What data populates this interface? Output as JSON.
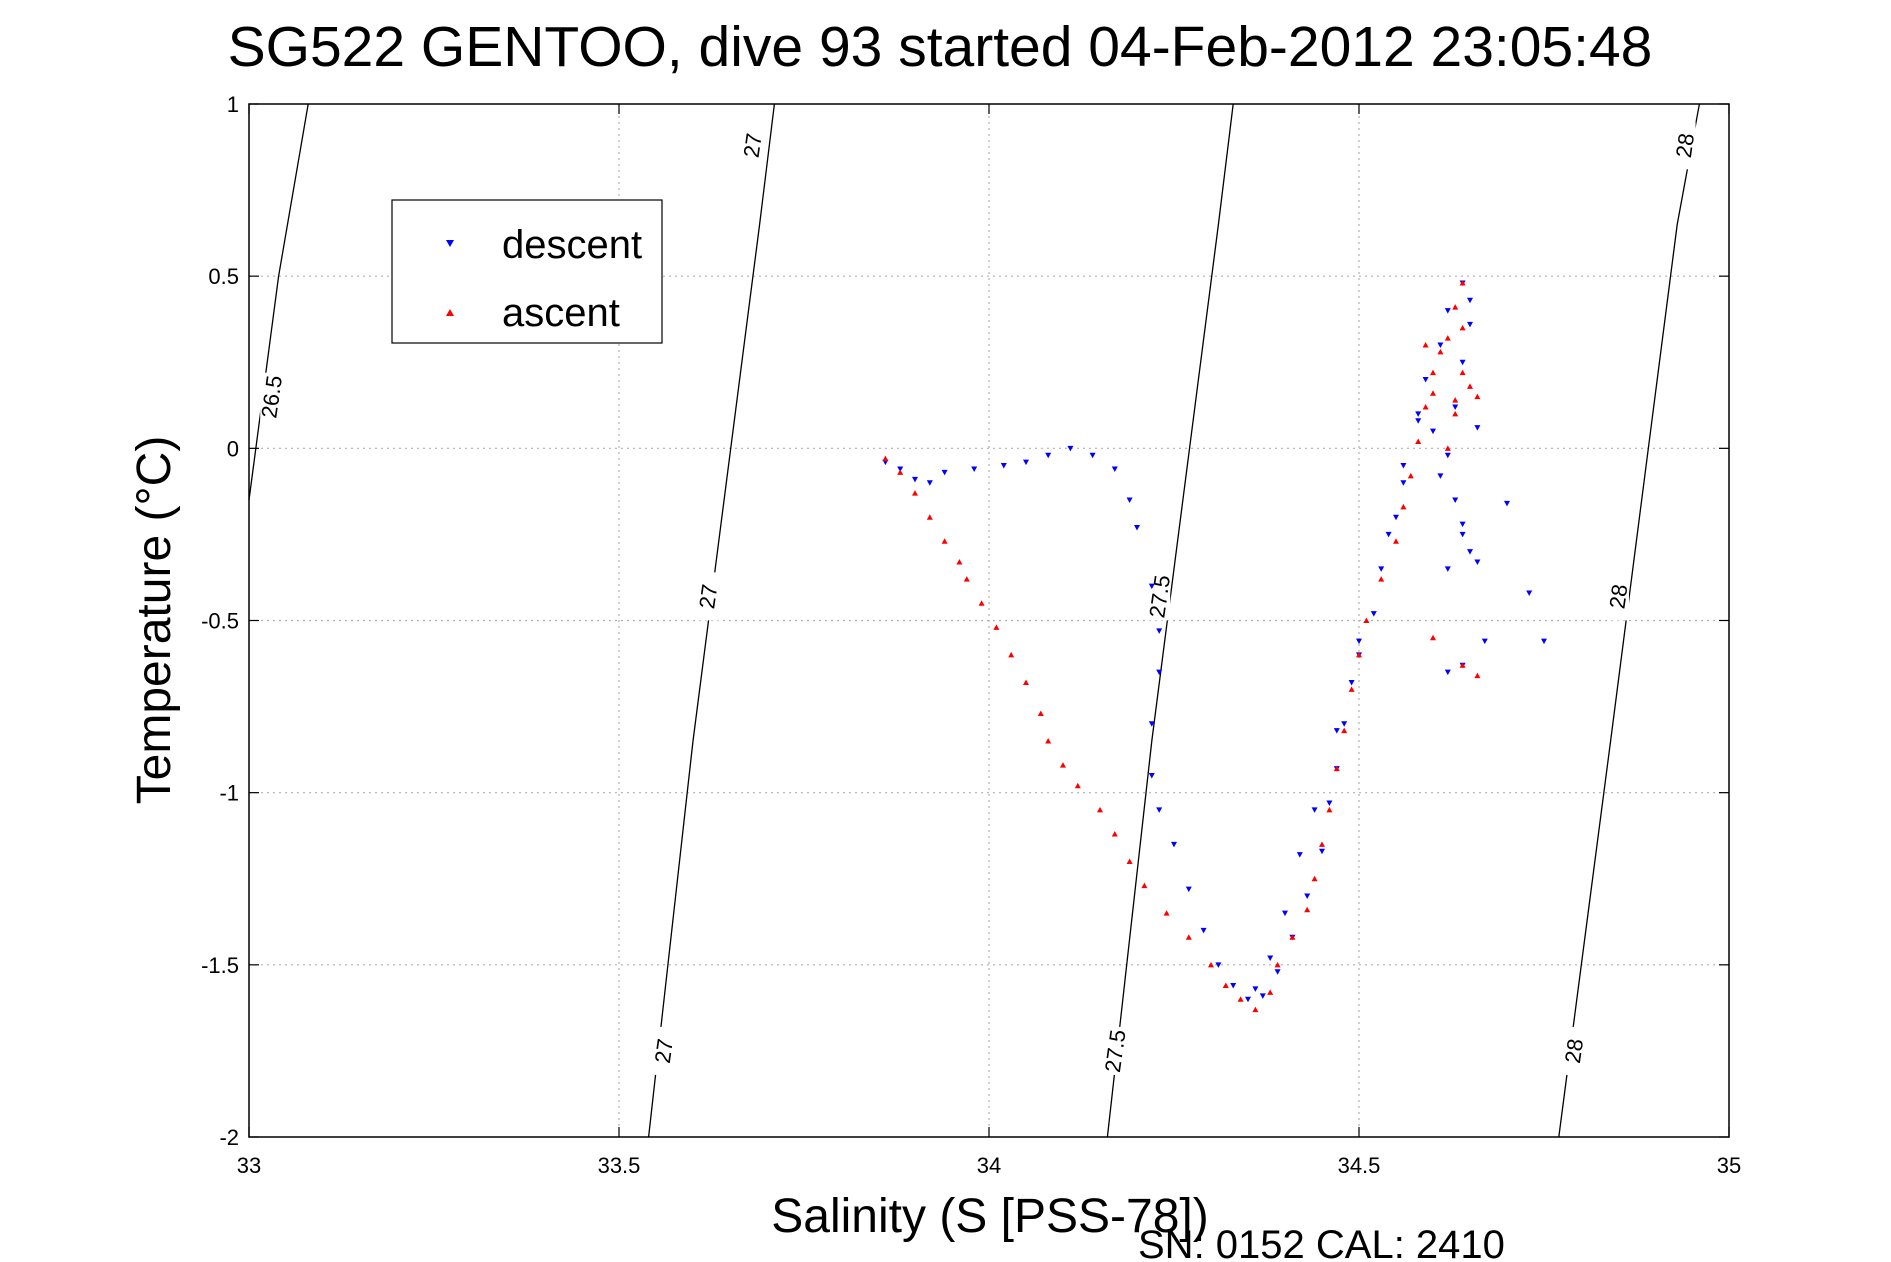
{
  "chart_data": {
    "type": "scatter",
    "title": "SG522 GENTOO, dive 93 started 04-Feb-2012 23:05:48",
    "xlabel": "Salinity (S [PSS-78])",
    "ylabel": "Temperature (°C)",
    "xlim": [
      33,
      35
    ],
    "ylim": [
      -2,
      1
    ],
    "xticks": [
      33,
      33.5,
      34,
      34.5,
      35
    ],
    "yticks": [
      -2,
      -1.5,
      -1,
      -0.5,
      0,
      0.5,
      1
    ],
    "xtick_labels": [
      "33",
      "33.5",
      "34",
      "34.5",
      "35"
    ],
    "ytick_labels": [
      "-2",
      "-1.5",
      "-1",
      "-0.5",
      "0",
      "0.5",
      "1"
    ],
    "grid": true,
    "legend_position": "top-left",
    "footer": "SN: 0152  CAL: 2410",
    "contours": [
      {
        "label": "26.5",
        "points": [
          [
            33.0,
            -0.15
          ],
          [
            33.04,
            0.5
          ],
          [
            33.08,
            1.0
          ]
        ],
        "label_positions": [
          [
            33.03,
            0.15
          ]
        ]
      },
      {
        "label": "27",
        "points": [
          [
            33.54,
            -2.0
          ],
          [
            33.6,
            -0.85
          ],
          [
            33.69,
            0.65
          ],
          [
            33.71,
            1.0
          ]
        ],
        "label_positions": [
          [
            33.68,
            0.88
          ],
          [
            33.62,
            -0.43
          ],
          [
            33.56,
            -1.75
          ]
        ]
      },
      {
        "label": "27.5",
        "points": [
          [
            34.16,
            -2.0
          ],
          [
            34.22,
            -0.85
          ],
          [
            34.31,
            0.65
          ],
          [
            34.33,
            1.0
          ]
        ],
        "label_positions": [
          [
            34.23,
            -0.43
          ],
          [
            34.17,
            -1.75
          ]
        ]
      },
      {
        "label": "28",
        "points": [
          [
            34.77,
            -2.0
          ],
          [
            34.84,
            -0.85
          ],
          [
            34.93,
            0.65
          ],
          [
            34.96,
            1.0
          ]
        ],
        "label_positions": [
          [
            34.94,
            0.88
          ],
          [
            34.85,
            -0.43
          ],
          [
            34.79,
            -1.75
          ]
        ]
      }
    ],
    "series": [
      {
        "name": "descent",
        "color": "#0000ff",
        "marker": "triangle-down",
        "points": [
          [
            33.86,
            -0.04
          ],
          [
            33.88,
            -0.06
          ],
          [
            33.9,
            -0.09
          ],
          [
            33.92,
            -0.1
          ],
          [
            33.94,
            -0.07
          ],
          [
            33.98,
            -0.06
          ],
          [
            34.02,
            -0.05
          ],
          [
            34.05,
            -0.04
          ],
          [
            34.08,
            -0.02
          ],
          [
            34.11,
            0.0
          ],
          [
            34.14,
            -0.02
          ],
          [
            34.17,
            -0.06
          ],
          [
            34.19,
            -0.15
          ],
          [
            34.2,
            -0.23
          ],
          [
            34.22,
            -0.4
          ],
          [
            34.23,
            -0.53
          ],
          [
            34.23,
            -0.65
          ],
          [
            34.22,
            -0.8
          ],
          [
            34.22,
            -0.95
          ],
          [
            34.23,
            -1.05
          ],
          [
            34.25,
            -1.15
          ],
          [
            34.27,
            -1.28
          ],
          [
            34.29,
            -1.4
          ],
          [
            34.31,
            -1.5
          ],
          [
            34.33,
            -1.56
          ],
          [
            34.35,
            -1.6
          ],
          [
            34.37,
            -1.59
          ],
          [
            34.39,
            -1.52
          ],
          [
            34.41,
            -1.42
          ],
          [
            34.43,
            -1.3
          ],
          [
            34.45,
            -1.17
          ],
          [
            34.46,
            -1.03
          ],
          [
            34.47,
            -0.93
          ],
          [
            34.48,
            -0.8
          ],
          [
            34.49,
            -0.68
          ],
          [
            34.5,
            -0.56
          ],
          [
            34.52,
            -0.48
          ],
          [
            34.53,
            -0.35
          ],
          [
            34.55,
            -0.2
          ],
          [
            34.56,
            -0.05
          ],
          [
            34.58,
            0.08
          ],
          [
            34.59,
            0.2
          ],
          [
            34.61,
            0.3
          ],
          [
            34.62,
            0.4
          ],
          [
            34.64,
            0.48
          ],
          [
            34.65,
            0.43
          ],
          [
            34.65,
            0.36
          ],
          [
            34.64,
            0.25
          ],
          [
            34.63,
            0.12
          ],
          [
            34.62,
            -0.02
          ],
          [
            34.63,
            -0.15
          ],
          [
            34.64,
            -0.25
          ],
          [
            34.62,
            -0.35
          ],
          [
            34.65,
            -0.3
          ],
          [
            34.66,
            -0.33
          ],
          [
            34.64,
            -0.22
          ],
          [
            34.61,
            -0.08
          ],
          [
            34.6,
            0.05
          ],
          [
            34.66,
            0.06
          ],
          [
            34.7,
            -0.16
          ],
          [
            34.73,
            -0.42
          ],
          [
            34.75,
            -0.56
          ],
          [
            34.67,
            -0.56
          ],
          [
            34.64,
            -0.63
          ],
          [
            34.62,
            -0.65
          ],
          [
            34.58,
            0.1
          ],
          [
            34.56,
            -0.1
          ],
          [
            34.54,
            -0.25
          ],
          [
            34.5,
            -0.6
          ],
          [
            34.47,
            -0.82
          ],
          [
            34.44,
            -1.05
          ],
          [
            34.42,
            -1.18
          ],
          [
            34.4,
            -1.35
          ],
          [
            34.38,
            -1.48
          ],
          [
            34.36,
            -1.57
          ]
        ]
      },
      {
        "name": "ascent",
        "color": "#ff0000",
        "marker": "triangle-up",
        "points": [
          [
            33.86,
            -0.03
          ],
          [
            33.88,
            -0.07
          ],
          [
            33.9,
            -0.13
          ],
          [
            33.92,
            -0.2
          ],
          [
            33.94,
            -0.27
          ],
          [
            33.96,
            -0.33
          ],
          [
            33.97,
            -0.38
          ],
          [
            33.99,
            -0.45
          ],
          [
            34.01,
            -0.52
          ],
          [
            34.03,
            -0.6
          ],
          [
            34.05,
            -0.68
          ],
          [
            34.07,
            -0.77
          ],
          [
            34.08,
            -0.85
          ],
          [
            34.1,
            -0.92
          ],
          [
            34.12,
            -0.98
          ],
          [
            34.15,
            -1.05
          ],
          [
            34.17,
            -1.12
          ],
          [
            34.19,
            -1.2
          ],
          [
            34.21,
            -1.27
          ],
          [
            34.24,
            -1.35
          ],
          [
            34.27,
            -1.42
          ],
          [
            34.3,
            -1.5
          ],
          [
            34.32,
            -1.56
          ],
          [
            34.34,
            -1.6
          ],
          [
            34.36,
            -1.63
          ],
          [
            34.38,
            -1.58
          ],
          [
            34.39,
            -1.5
          ],
          [
            34.41,
            -1.42
          ],
          [
            34.43,
            -1.34
          ],
          [
            34.44,
            -1.25
          ],
          [
            34.45,
            -1.15
          ],
          [
            34.46,
            -1.05
          ],
          [
            34.47,
            -0.93
          ],
          [
            34.48,
            -0.82
          ],
          [
            34.49,
            -0.7
          ],
          [
            34.5,
            -0.6
          ],
          [
            34.51,
            -0.5
          ],
          [
            34.53,
            -0.38
          ],
          [
            34.55,
            -0.27
          ],
          [
            34.56,
            -0.17
          ],
          [
            34.57,
            -0.08
          ],
          [
            34.58,
            0.02
          ],
          [
            34.59,
            0.12
          ],
          [
            34.6,
            0.22
          ],
          [
            34.62,
            0.32
          ],
          [
            34.63,
            0.41
          ],
          [
            34.64,
            0.48
          ],
          [
            34.64,
            0.35
          ],
          [
            34.64,
            0.22
          ],
          [
            34.63,
            0.1
          ],
          [
            34.62,
            0.0
          ],
          [
            34.63,
            0.14
          ],
          [
            34.65,
            0.18
          ],
          [
            34.6,
            0.16
          ],
          [
            34.66,
            0.15
          ],
          [
            34.64,
            -0.63
          ],
          [
            34.66,
            -0.66
          ],
          [
            34.6,
            -0.55
          ],
          [
            34.59,
            0.3
          ],
          [
            34.61,
            0.28
          ]
        ]
      }
    ]
  }
}
